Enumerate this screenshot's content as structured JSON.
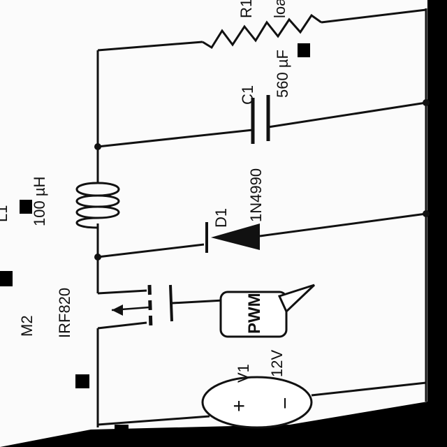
{
  "colors": {
    "background": "#000000",
    "paper": "#fbfbfb",
    "ink": "#111111"
  },
  "components": {
    "R1": {
      "designator": "R1",
      "value": "loa"
    },
    "C1": {
      "designator": "C1",
      "value": "560 µF"
    },
    "L1": {
      "designator": "L1",
      "value": "100 µH"
    },
    "D1": {
      "designator": "D1",
      "value": "1N4990"
    },
    "M2": {
      "designator": "M2",
      "value": "IRF820"
    },
    "V1": {
      "designator": "V1",
      "value": "12V",
      "plus": "+",
      "minus": "−"
    },
    "PWM": {
      "label": "PWM"
    }
  }
}
